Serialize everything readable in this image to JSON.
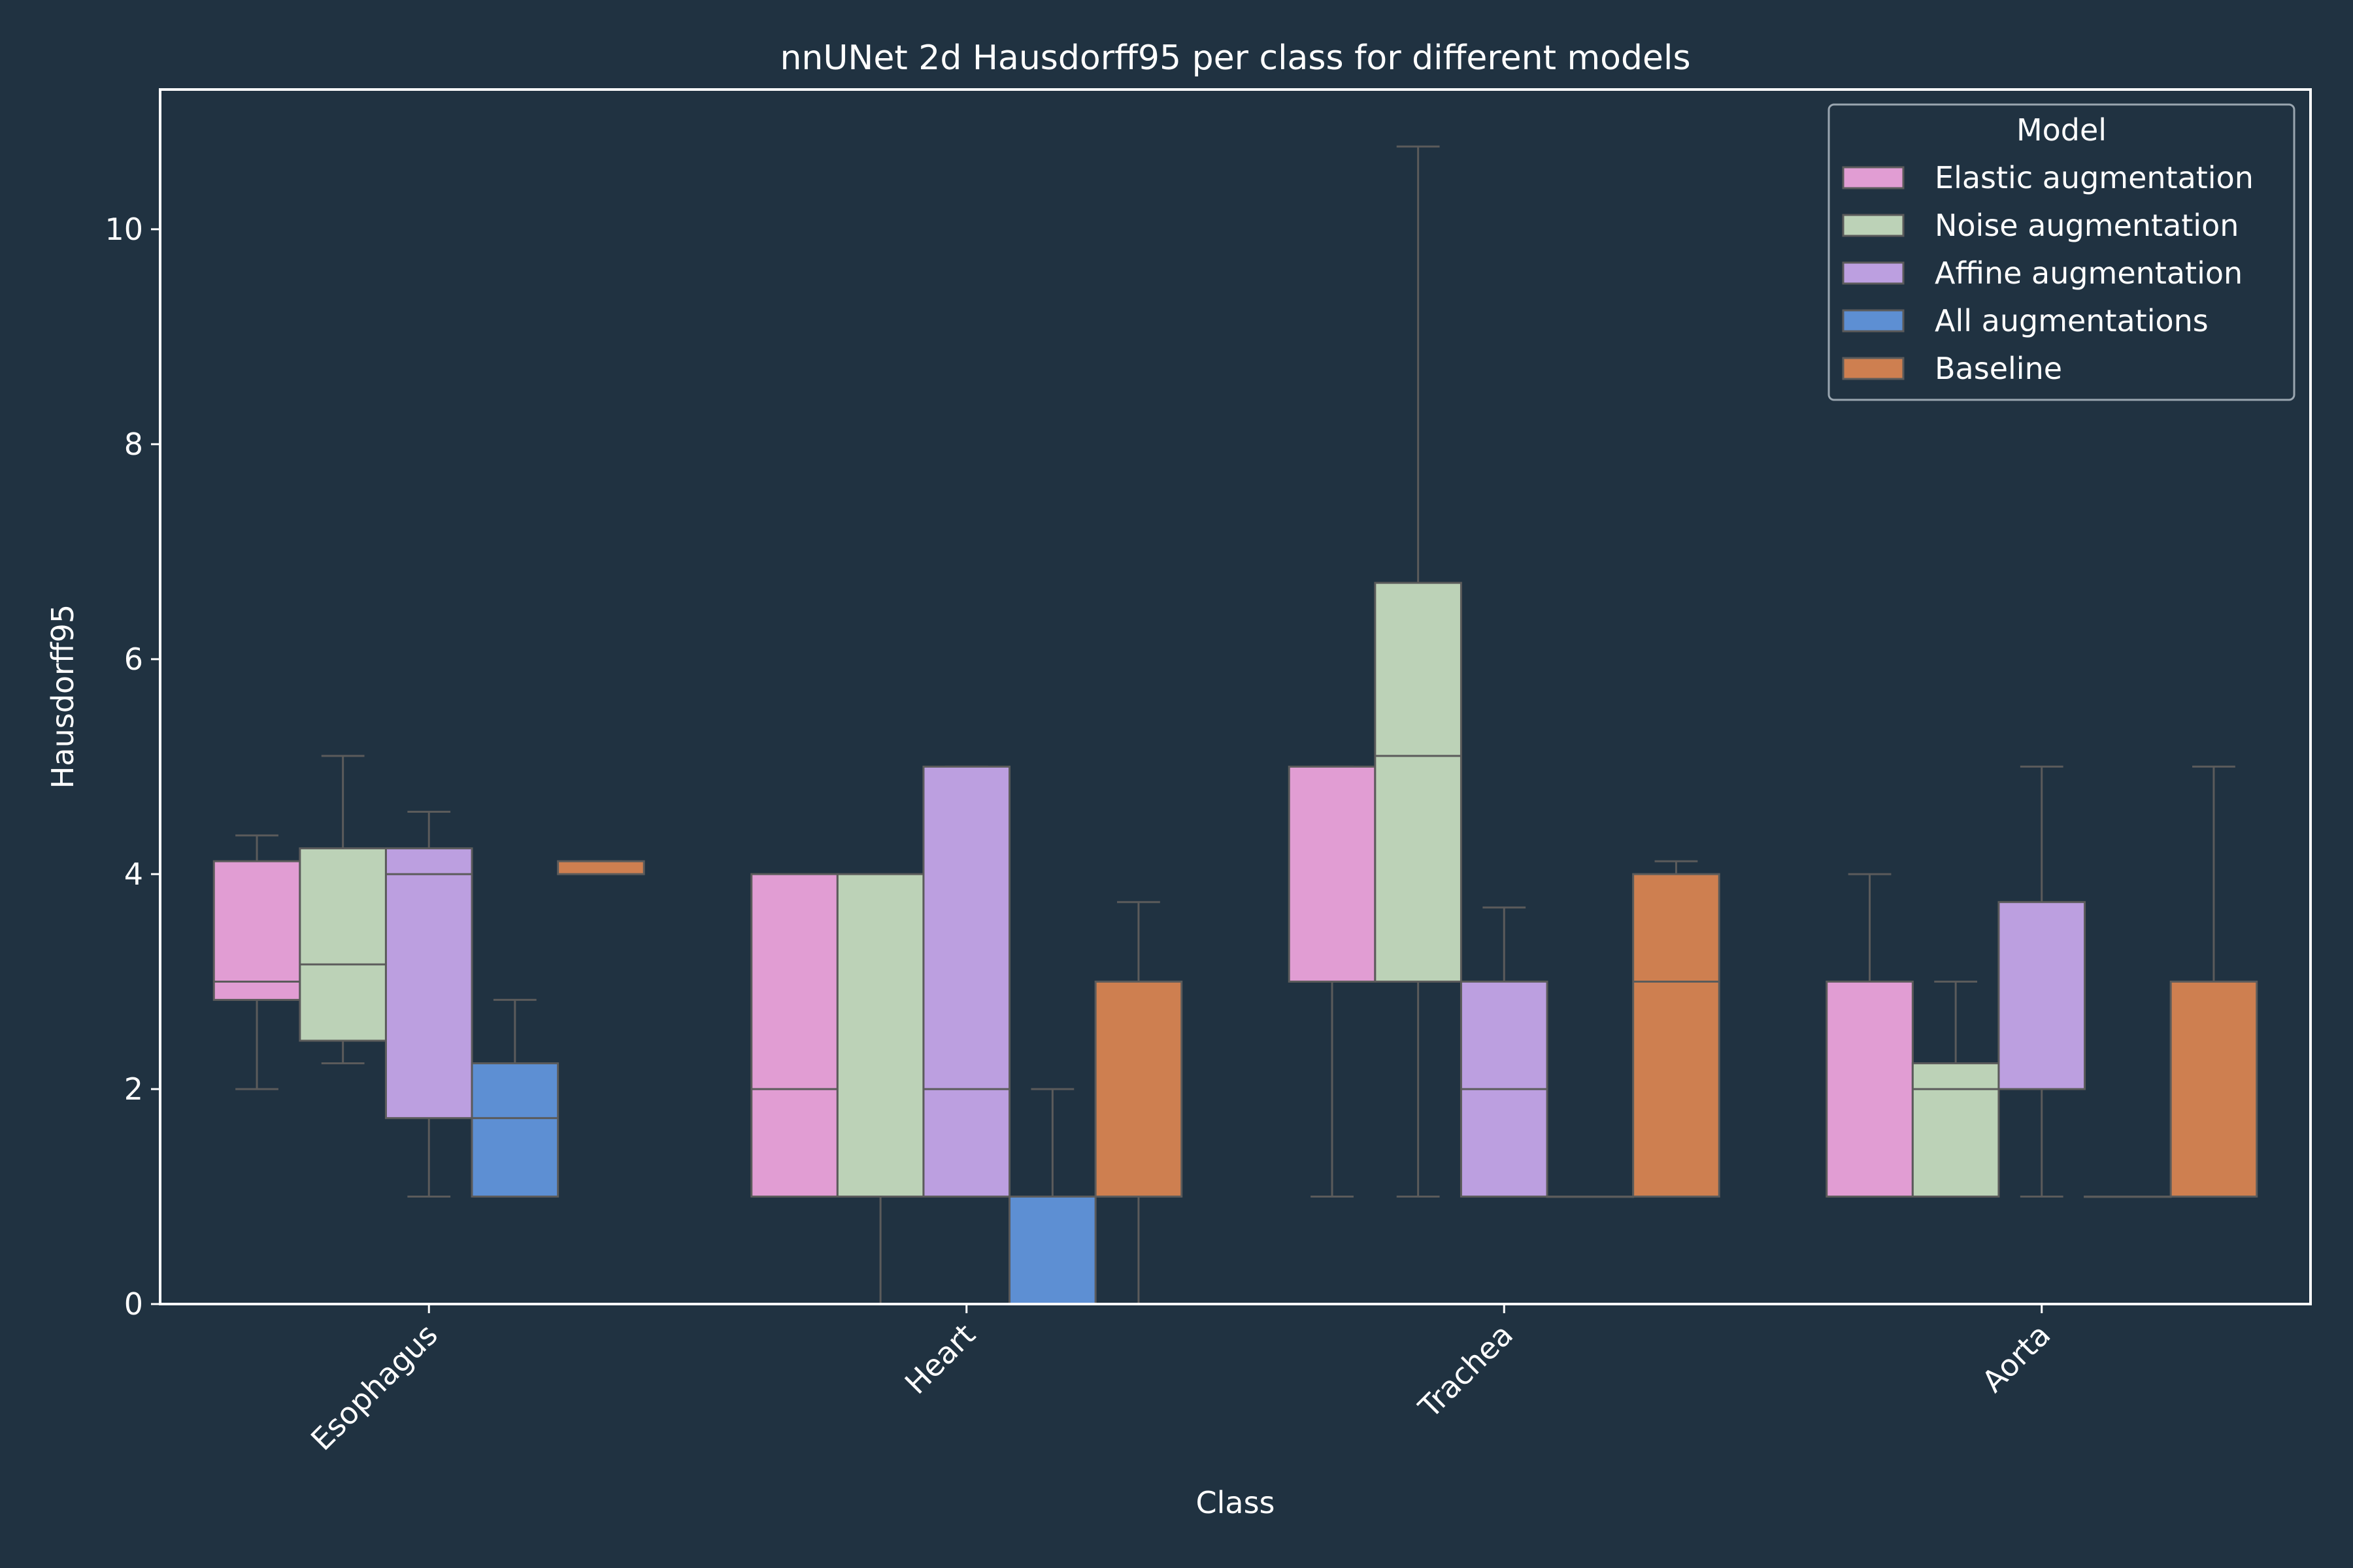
{
  "chart_data": {
    "type": "box",
    "title": "nnUNet 2d Hausdorff95 per class for different models",
    "xlabel": "Class",
    "ylabel": "Hausdorff95",
    "ylim": [
      0,
      11.3
    ],
    "yticks": [
      0,
      2,
      4,
      6,
      8,
      10
    ],
    "categories": [
      "Esophagus",
      "Heart",
      "Trachea",
      "Aorta"
    ],
    "legend": {
      "title": "Model",
      "placement": "top-right"
    },
    "grid": false,
    "series": [
      {
        "name": "Elastic augmentation",
        "color": "#e19dd3",
        "boxes": [
          {
            "whislo": 2.0,
            "q1": 2.83,
            "med": 3.0,
            "q3": 4.12,
            "whishi": 4.36
          },
          {
            "whislo": 1.0,
            "q1": 1.0,
            "med": 2.0,
            "q3": 4.0,
            "whishi": 4.0
          },
          {
            "whislo": 1.0,
            "q1": 3.0,
            "med": 3.0,
            "q3": 5.0,
            "whishi": 5.0
          },
          {
            "whislo": 1.0,
            "q1": 1.0,
            "med": 1.0,
            "q3": 3.0,
            "whishi": 4.0
          }
        ]
      },
      {
        "name": "Noise augmentation",
        "color": "#bcd2b7",
        "boxes": [
          {
            "whislo": 2.24,
            "q1": 2.45,
            "med": 3.16,
            "q3": 4.24,
            "whishi": 5.1
          },
          {
            "whislo": 0.0,
            "q1": 1.0,
            "med": 1.0,
            "q3": 4.0,
            "whishi": 4.0
          },
          {
            "whislo": 1.0,
            "q1": 3.0,
            "med": 5.1,
            "q3": 6.71,
            "whishi": 10.77
          },
          {
            "whislo": 1.0,
            "q1": 1.0,
            "med": 2.0,
            "q3": 2.24,
            "whishi": 3.0
          }
        ]
      },
      {
        "name": "Affine augmentation",
        "color": "#bc9fe0",
        "boxes": [
          {
            "whislo": 1.0,
            "q1": 1.73,
            "med": 4.0,
            "q3": 4.24,
            "whishi": 4.58
          },
          {
            "whislo": 1.0,
            "q1": 1.0,
            "med": 2.0,
            "q3": 5.0,
            "whishi": 5.0
          },
          {
            "whislo": 1.0,
            "q1": 1.0,
            "med": 2.0,
            "q3": 3.0,
            "whishi": 3.69
          },
          {
            "whislo": 1.0,
            "q1": 2.0,
            "med": 2.0,
            "q3": 3.74,
            "whishi": 5.0
          }
        ]
      },
      {
        "name": "All augmentations",
        "color": "#5d8fd3",
        "boxes": [
          {
            "whislo": 1.0,
            "q1": 1.0,
            "med": 1.73,
            "q3": 2.24,
            "whishi": 2.83
          },
          {
            "whislo": 0.0,
            "q1": 0.0,
            "med": 1.0,
            "q3": 1.0,
            "whishi": 2.0
          },
          {
            "whislo": 1.0,
            "q1": 1.0,
            "med": 1.0,
            "q3": 1.0,
            "whishi": 1.0
          },
          {
            "whislo": 1.0,
            "q1": 1.0,
            "med": 1.0,
            "q3": 1.0,
            "whishi": 1.0
          }
        ]
      },
      {
        "name": "Baseline",
        "color": "#ce7f50",
        "boxes": [
          {
            "whislo": 4.0,
            "q1": 4.0,
            "med": 4.0,
            "q3": 4.12,
            "whishi": 4.12
          },
          {
            "whislo": 0.0,
            "q1": 1.0,
            "med": 1.0,
            "q3": 3.0,
            "whishi": 3.74
          },
          {
            "whislo": 1.0,
            "q1": 1.0,
            "med": 3.0,
            "q3": 4.0,
            "whishi": 4.12
          },
          {
            "whislo": 1.0,
            "q1": 1.0,
            "med": 1.0,
            "q3": 3.0,
            "whishi": 5.0
          }
        ]
      }
    ]
  }
}
